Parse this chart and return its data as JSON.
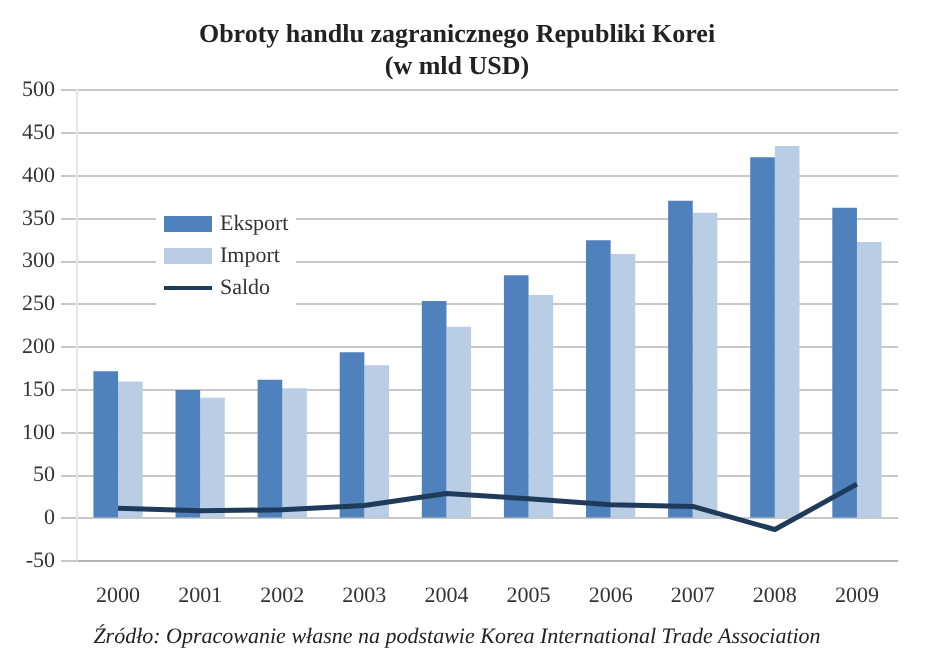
{
  "chart_data": {
    "type": "bar",
    "title": [
      "Obroty handlu zagranicznego Republiki Korei",
      "(w mld USD)"
    ],
    "categories": [
      "2000",
      "2001",
      "2002",
      "2003",
      "2004",
      "2005",
      "2006",
      "2007",
      "2008",
      "2009"
    ],
    "series": [
      {
        "name": "Eksport",
        "color": "#4f81bd",
        "values": [
          172,
          150,
          162,
          194,
          254,
          284,
          325,
          371,
          422,
          363
        ]
      },
      {
        "name": "Import",
        "color": "#b9cde5",
        "values": [
          160,
          141,
          152,
          179,
          224,
          261,
          309,
          357,
          435,
          323
        ]
      },
      {
        "name": "Saldo",
        "type": "line",
        "color": "#1f3a5a",
        "values": [
          12,
          9,
          10,
          15,
          29,
          23,
          16,
          14,
          -13,
          40
        ]
      }
    ],
    "ylim": [
      -50,
      500
    ],
    "yticks": [
      -50,
      0,
      50,
      100,
      150,
      200,
      250,
      300,
      350,
      400,
      450,
      500
    ],
    "grid": "y",
    "legend": "top left",
    "marker": "none",
    "annotations": [
      "Źródło: Opracowanie własne na podstawie Korea International Trade Association"
    ]
  }
}
